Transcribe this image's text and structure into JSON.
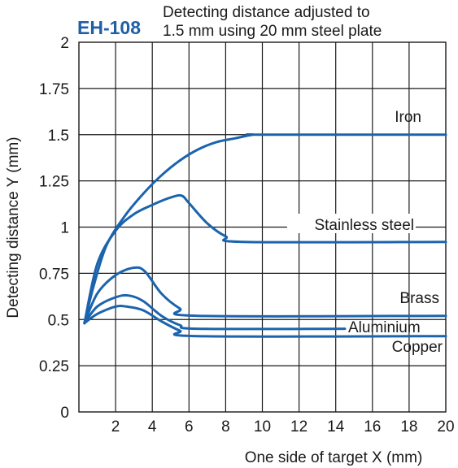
{
  "chart_data": {
    "type": "line",
    "model": "EH-108",
    "title_line1": "Detecting distance adjusted to",
    "title_line2": "1.5 mm using 20 mm steel plate",
    "xlabel": "One side of target X (mm)",
    "ylabel": "Detecting distance Y (mm)",
    "xlim": [
      0,
      20
    ],
    "ylim": [
      0,
      2
    ],
    "xticks": [
      2,
      4,
      6,
      8,
      10,
      12,
      14,
      16,
      18,
      20
    ],
    "yticks": [
      0,
      0.25,
      0.5,
      0.75,
      1,
      1.25,
      1.5,
      1.75,
      2
    ],
    "ytick_labels": [
      "0",
      "0.25",
      "0.5",
      "0.75",
      "1",
      "1.25",
      "1.5",
      "1.75",
      "2"
    ],
    "grid": true,
    "curve_color": "#1b64ad",
    "series": [
      {
        "name": "Iron",
        "x": [
          0.3,
          0.8,
          1.5,
          2.5,
          3.5,
          4.5,
          5.5,
          6.5,
          7.5,
          8.5,
          9.5,
          10,
          20
        ],
        "y": [
          0.48,
          0.68,
          0.9,
          1.06,
          1.18,
          1.28,
          1.36,
          1.42,
          1.46,
          1.48,
          1.5,
          1.5,
          1.5
        ]
      },
      {
        "name": "Stainless steel",
        "x": [
          0.3,
          1,
          2,
          3,
          4,
          5,
          5.6,
          6,
          7,
          8,
          9,
          20
        ],
        "y": [
          0.48,
          0.8,
          0.98,
          1.07,
          1.12,
          1.16,
          1.17,
          1.13,
          1.02,
          0.95,
          0.92,
          0.92
        ]
      },
      {
        "name": "Brass",
        "x": [
          0.3,
          1,
          2,
          3,
          3.6,
          4.5,
          5.5,
          6.5,
          20
        ],
        "y": [
          0.48,
          0.64,
          0.74,
          0.78,
          0.76,
          0.64,
          0.56,
          0.52,
          0.52
        ]
      },
      {
        "name": "Aluminium",
        "x": [
          0.3,
          1,
          2,
          2.7,
          3.5,
          4.5,
          5.5,
          6.5,
          14.5
        ],
        "y": [
          0.48,
          0.57,
          0.62,
          0.63,
          0.6,
          0.52,
          0.47,
          0.45,
          0.45
        ]
      },
      {
        "name": "Copper",
        "x": [
          0.3,
          1,
          2,
          2.6,
          3.5,
          4.5,
          5.5,
          6.5,
          20
        ],
        "y": [
          0.48,
          0.53,
          0.57,
          0.57,
          0.55,
          0.49,
          0.44,
          0.41,
          0.41
        ]
      }
    ]
  }
}
